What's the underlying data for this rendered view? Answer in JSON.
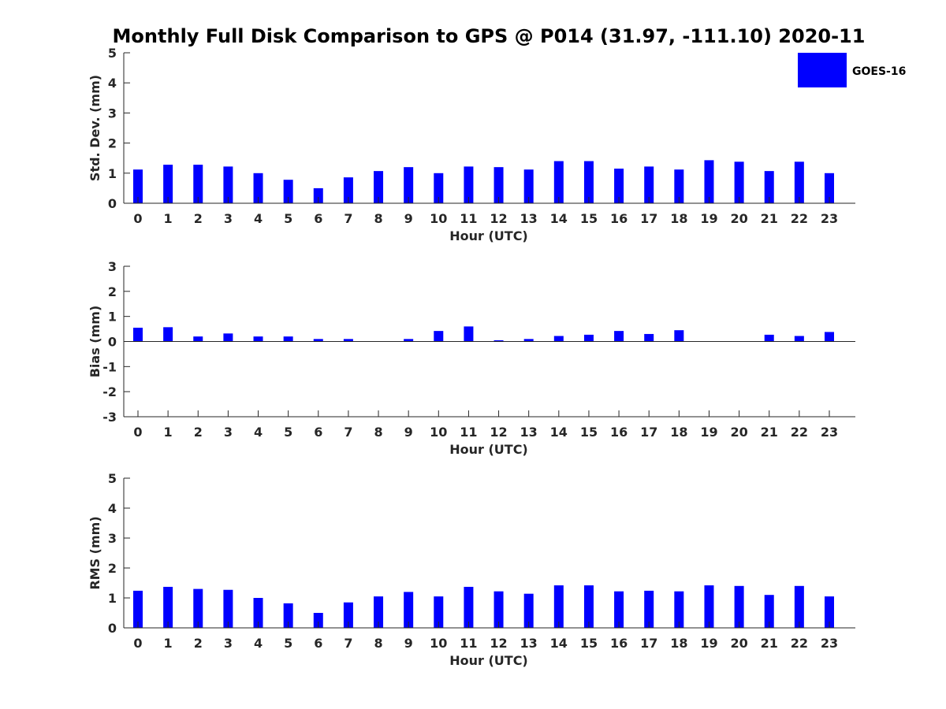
{
  "figure": {
    "title": "Monthly Full Disk Comparison to GPS @ P014 (31.97, -111.10) 2020-11"
  },
  "legend": {
    "label": "GOES-16",
    "color": "#0000ff",
    "placement": "top-right"
  },
  "chart_data": [
    {
      "type": "bar",
      "xlabel": "Hour (UTC)",
      "ylabel": "Std. Dev. (mm)",
      "ylim": [
        0,
        5
      ],
      "yticks": [
        0,
        1,
        2,
        3,
        4,
        5
      ],
      "grid": false,
      "categories": [
        "0",
        "1",
        "2",
        "3",
        "4",
        "5",
        "6",
        "7",
        "8",
        "9",
        "10",
        "11",
        "12",
        "13",
        "14",
        "15",
        "16",
        "17",
        "18",
        "19",
        "20",
        "21",
        "22",
        "23"
      ],
      "series": [
        {
          "name": "GOES-16",
          "values": [
            1.12,
            1.28,
            1.28,
            1.22,
            1.0,
            0.78,
            0.5,
            0.86,
            1.07,
            1.2,
            1.0,
            1.22,
            1.2,
            1.12,
            1.4,
            1.4,
            1.15,
            1.22,
            1.12,
            1.43,
            1.38,
            1.07,
            1.38,
            1.0
          ]
        }
      ]
    },
    {
      "type": "bar",
      "xlabel": "Hour (UTC)",
      "ylabel": "Bias (mm)",
      "ylim": [
        -3,
        3
      ],
      "yticks": [
        -3,
        -2,
        -1,
        0,
        1,
        2,
        3
      ],
      "grid": false,
      "categories": [
        "0",
        "1",
        "2",
        "3",
        "4",
        "5",
        "6",
        "7",
        "8",
        "9",
        "10",
        "11",
        "12",
        "13",
        "14",
        "15",
        "16",
        "17",
        "18",
        "19",
        "20",
        "21",
        "22",
        "23"
      ],
      "series": [
        {
          "name": "GOES-16",
          "values": [
            0.55,
            0.57,
            0.2,
            0.32,
            0.2,
            0.2,
            0.1,
            0.1,
            0.0,
            0.1,
            0.42,
            0.6,
            0.05,
            0.1,
            0.22,
            0.27,
            0.42,
            0.3,
            0.45,
            0.0,
            0.0,
            0.27,
            0.22,
            0.38
          ]
        }
      ]
    },
    {
      "type": "bar",
      "xlabel": "Hour (UTC)",
      "ylabel": "RMS (mm)",
      "ylim": [
        0,
        5
      ],
      "yticks": [
        0,
        1,
        2,
        3,
        4,
        5
      ],
      "grid": false,
      "categories": [
        "0",
        "1",
        "2",
        "3",
        "4",
        "5",
        "6",
        "7",
        "8",
        "9",
        "10",
        "11",
        "12",
        "13",
        "14",
        "15",
        "16",
        "17",
        "18",
        "19",
        "20",
        "21",
        "22",
        "23"
      ],
      "series": [
        {
          "name": "GOES-16",
          "values": [
            1.24,
            1.37,
            1.3,
            1.27,
            1.0,
            0.82,
            0.5,
            0.85,
            1.05,
            1.2,
            1.05,
            1.37,
            1.22,
            1.14,
            1.42,
            1.42,
            1.22,
            1.24,
            1.22,
            1.42,
            1.4,
            1.1,
            1.4,
            1.05
          ]
        }
      ]
    }
  ]
}
